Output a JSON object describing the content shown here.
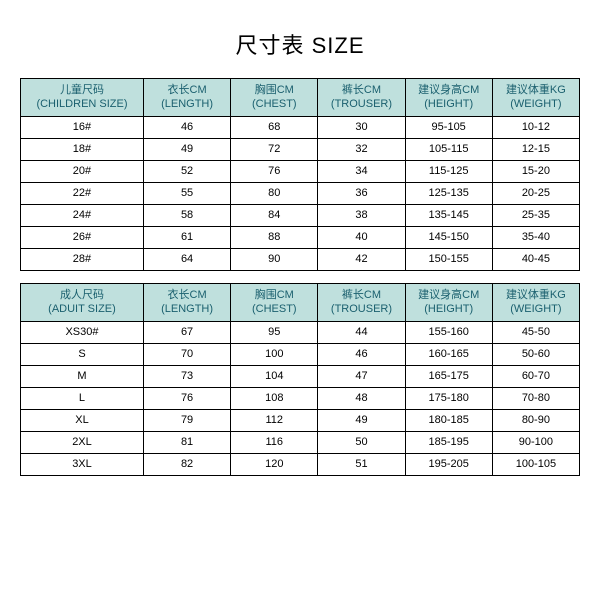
{
  "title": "尺寸表 SIZE",
  "header_bg": "#bfe0dd",
  "header_fg": "#1a5f6e",
  "border_color": "#000000",
  "columns": {
    "c0": {
      "zh": "儿童尺码",
      "en": "(CHILDREN SIZE)"
    },
    "c1": {
      "zh": "衣长CM",
      "en": "(LENGTH)"
    },
    "c2": {
      "zh": "胸围CM",
      "en": "(CHEST)"
    },
    "c3": {
      "zh": "裤长CM",
      "en": "(TROUSER)"
    },
    "c4": {
      "zh": "建议身高CM",
      "en": "(HEIGHT)"
    },
    "c5": {
      "zh": "建议体重KG",
      "en": "(WEIGHT)"
    },
    "a0": {
      "zh": "成人尺码",
      "en": "(ADUIT SIZE)"
    }
  },
  "children_rows": [
    {
      "size": "16#",
      "length": "46",
      "chest": "68",
      "trouser": "30",
      "height": "95-105",
      "weight": "10-12"
    },
    {
      "size": "18#",
      "length": "49",
      "chest": "72",
      "trouser": "32",
      "height": "105-115",
      "weight": "12-15"
    },
    {
      "size": "20#",
      "length": "52",
      "chest": "76",
      "trouser": "34",
      "height": "115-125",
      "weight": "15-20"
    },
    {
      "size": "22#",
      "length": "55",
      "chest": "80",
      "trouser": "36",
      "height": "125-135",
      "weight": "20-25"
    },
    {
      "size": "24#",
      "length": "58",
      "chest": "84",
      "trouser": "38",
      "height": "135-145",
      "weight": "25-35"
    },
    {
      "size": "26#",
      "length": "61",
      "chest": "88",
      "trouser": "40",
      "height": "145-150",
      "weight": "35-40"
    },
    {
      "size": "28#",
      "length": "64",
      "chest": "90",
      "trouser": "42",
      "height": "150-155",
      "weight": "40-45"
    }
  ],
  "adult_rows": [
    {
      "size": "XS30#",
      "length": "67",
      "chest": "95",
      "trouser": "44",
      "height": "155-160",
      "weight": "45-50"
    },
    {
      "size": "S",
      "length": "70",
      "chest": "100",
      "trouser": "46",
      "height": "160-165",
      "weight": "50-60"
    },
    {
      "size": "M",
      "length": "73",
      "chest": "104",
      "trouser": "47",
      "height": "165-175",
      "weight": "60-70"
    },
    {
      "size": "L",
      "length": "76",
      "chest": "108",
      "trouser": "48",
      "height": "175-180",
      "weight": "70-80"
    },
    {
      "size": "XL",
      "length": "79",
      "chest": "112",
      "trouser": "49",
      "height": "180-185",
      "weight": "80-90"
    },
    {
      "size": "2XL",
      "length": "81",
      "chest": "116",
      "trouser": "50",
      "height": "185-195",
      "weight": "90-100"
    },
    {
      "size": "3XL",
      "length": "82",
      "chest": "120",
      "trouser": "51",
      "height": "195-205",
      "weight": "100-105"
    }
  ]
}
